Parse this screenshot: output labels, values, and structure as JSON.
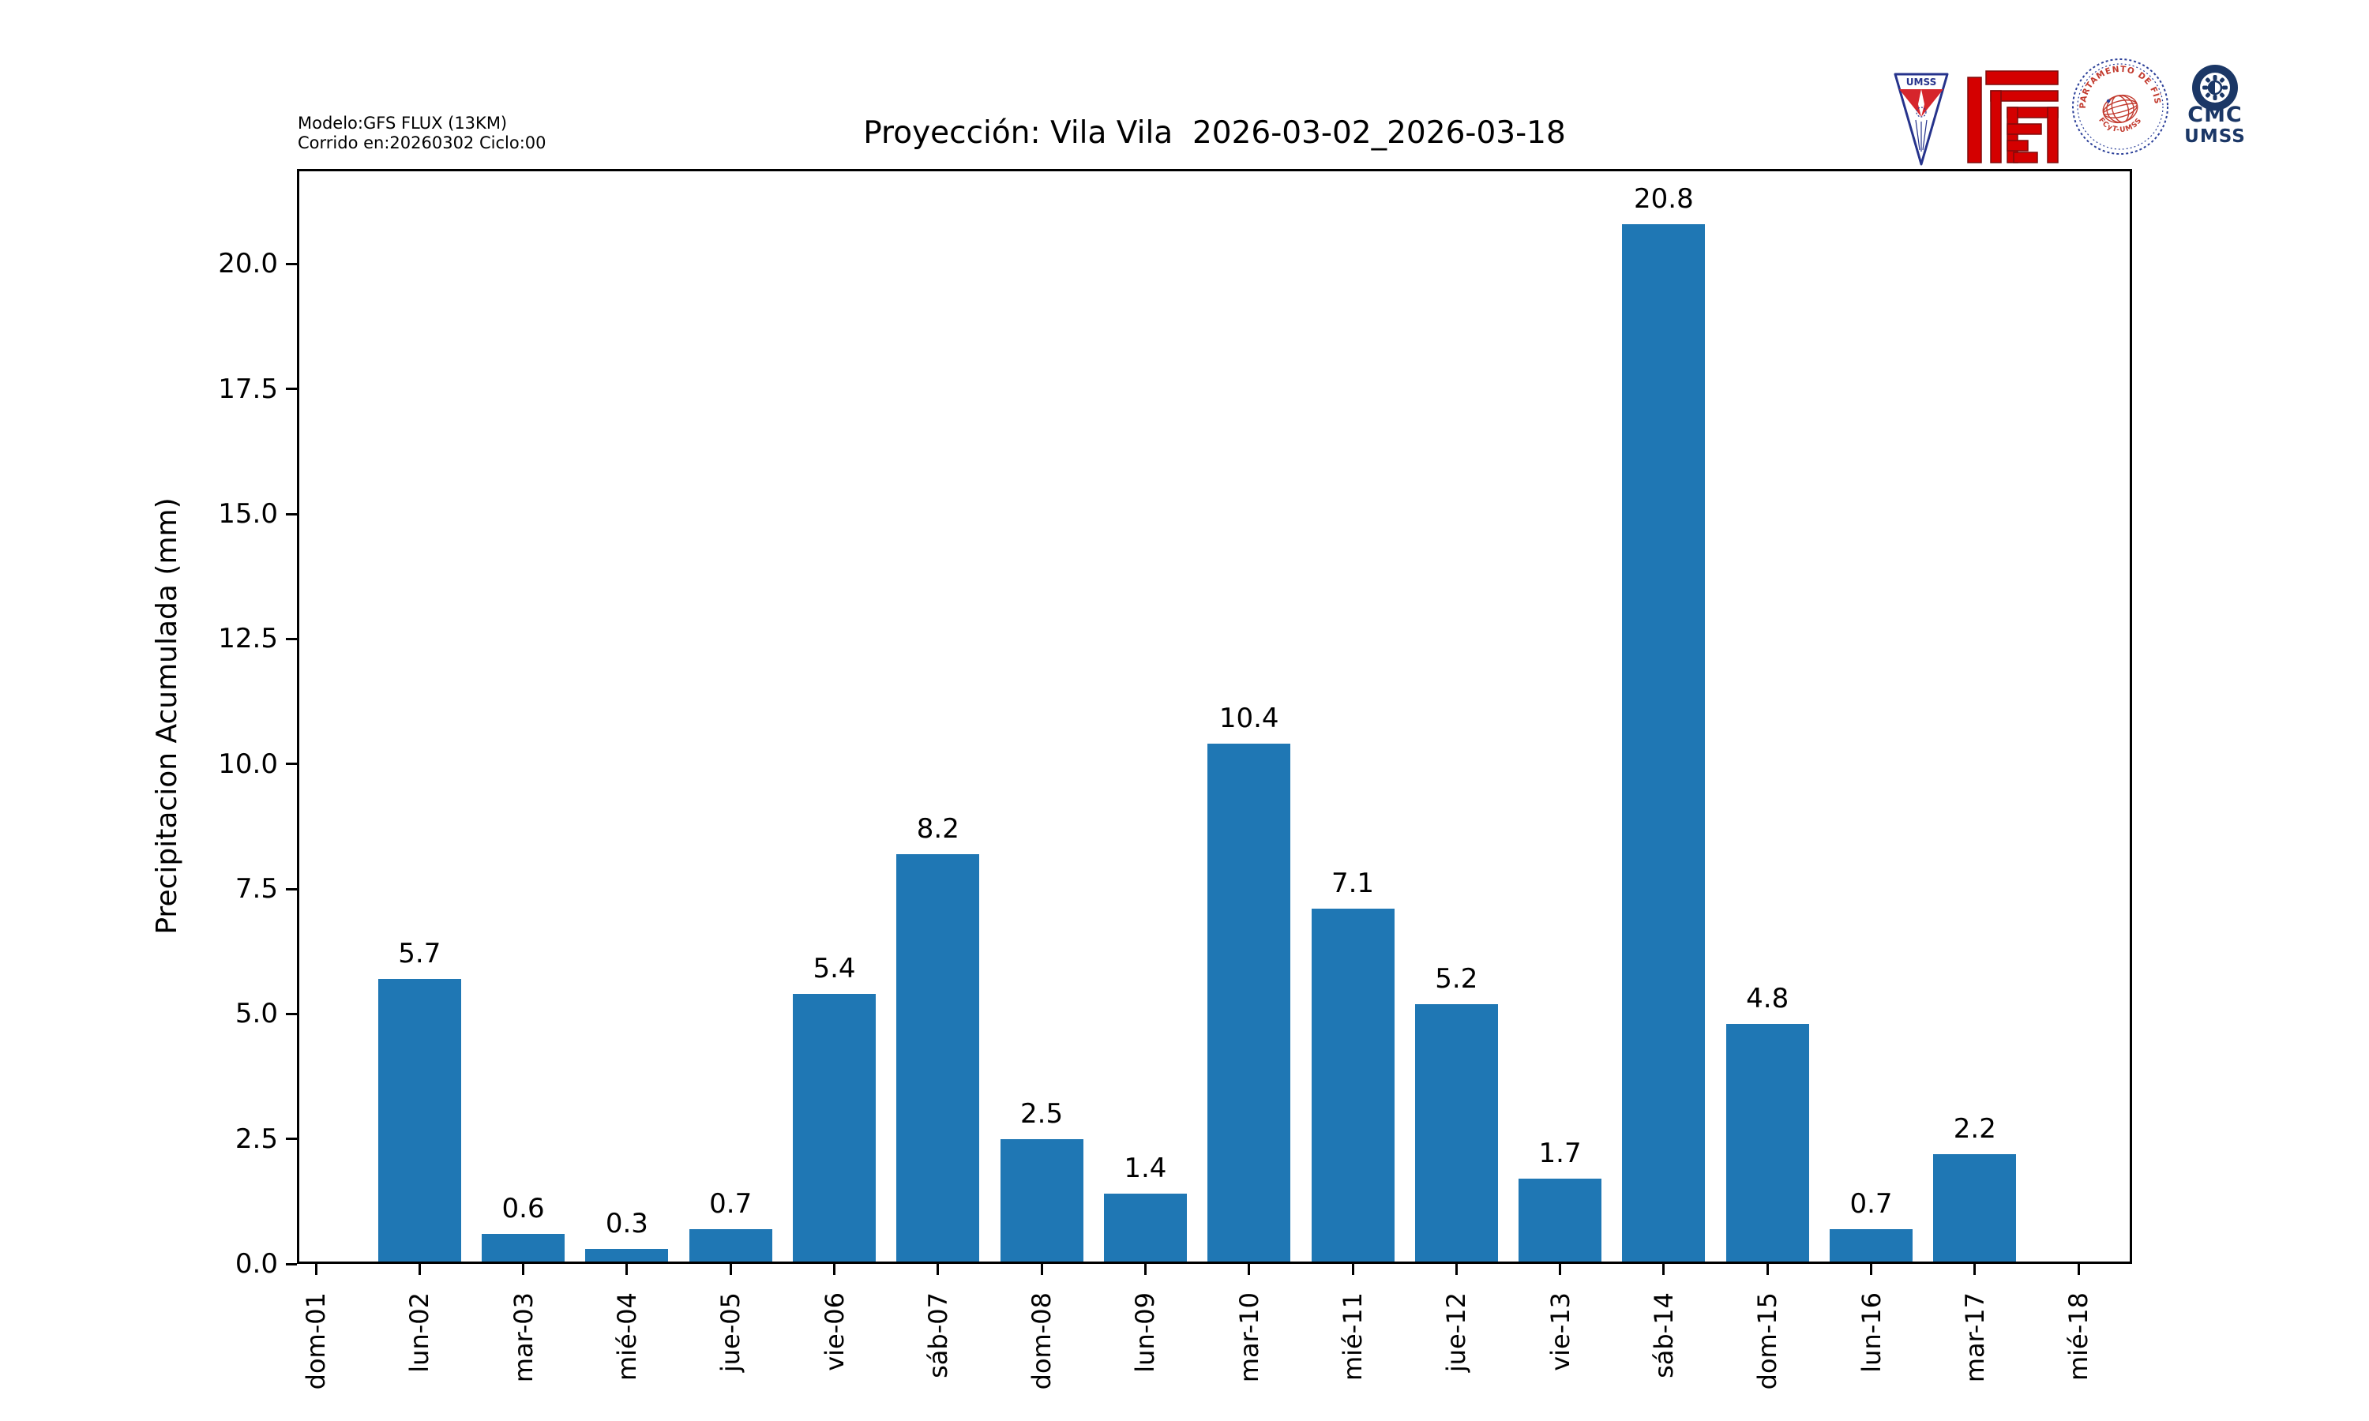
{
  "header": {
    "model_line1": "Modelo:GFS FLUX (13KM)",
    "model_line2": "Corrido en:20260302 Ciclo:00",
    "title": "Proyección: Vila Vila  2026-03-02_2026-03-18"
  },
  "logos": {
    "umss_pennant_text": "UMSS",
    "physics_seal_text_top": "DEPARTAMENTO DE FÍSICA",
    "physics_seal_text_bottom": "FCyT-UMSS",
    "cmc_line1": "CMC",
    "cmc_line2": "UMSS"
  },
  "chart_data": {
    "type": "bar",
    "title": "Proyección: Vila Vila  2026-03-02_2026-03-18",
    "categories": [
      "dom-01",
      "lun-02",
      "mar-03",
      "mié-04",
      "jue-05",
      "vie-06",
      "sáb-07",
      "dom-08",
      "lun-09",
      "mar-10",
      "mié-11",
      "jue-12",
      "vie-13",
      "sáb-14",
      "dom-15",
      "lun-16",
      "mar-17",
      "mié-18"
    ],
    "values": [
      0.0,
      5.7,
      0.6,
      0.3,
      0.7,
      5.4,
      8.2,
      2.5,
      1.4,
      10.4,
      7.1,
      5.2,
      1.7,
      20.8,
      4.8,
      0.7,
      2.2,
      0.0
    ],
    "xlabel": "",
    "ylabel": "Precipitacion Acumulada (mm)",
    "ylim": [
      0,
      21.9
    ],
    "yticks": [
      0.0,
      2.5,
      5.0,
      7.5,
      10.0,
      12.5,
      15.0,
      17.5,
      20.0
    ],
    "grid": false,
    "legend": null,
    "bar_color": "#1f77b4",
    "value_labels_shown": true
  }
}
